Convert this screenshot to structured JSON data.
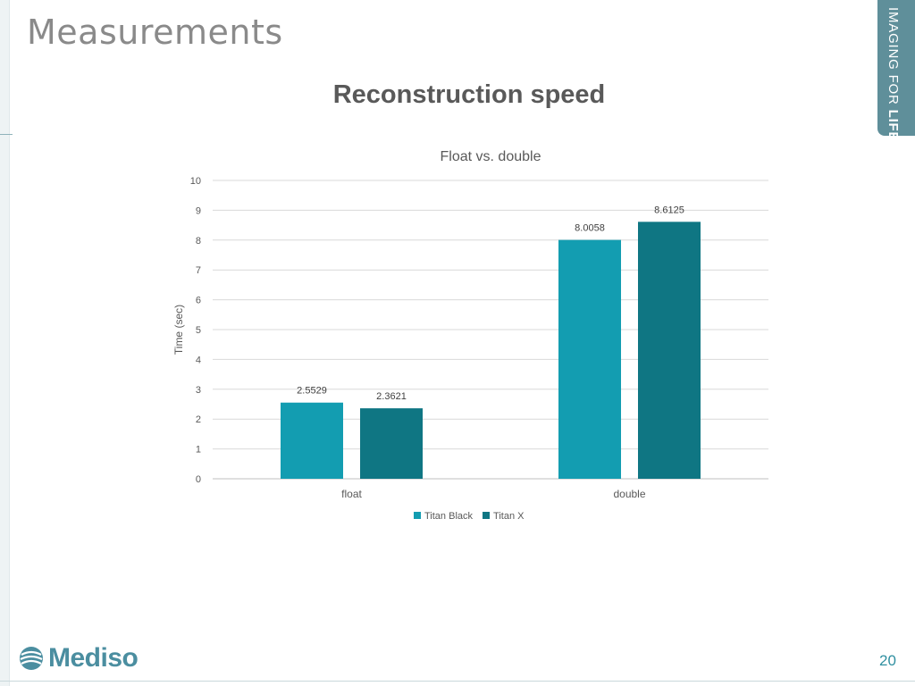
{
  "slide": {
    "title": "Measurements",
    "subtitle": "Reconstruction speed",
    "page_number": "20",
    "brand_tab": {
      "prefix": "IMAGING FOR ",
      "emphasis": "LIFE"
    },
    "logo_text": "Mediso"
  },
  "colors": {
    "titan_black": "#139db1",
    "titan_x": "#0f7683",
    "brand": "#5f8f9a"
  },
  "chart_data": {
    "type": "bar",
    "title": "Float vs. double",
    "xlabel": "",
    "ylabel": "Time (sec)",
    "categories": [
      "float",
      "double"
    ],
    "series": [
      {
        "name": "Titan Black",
        "values": [
          2.5529,
          8.0058
        ],
        "color": "#139db1"
      },
      {
        "name": "Titan X",
        "values": [
          2.3621,
          8.6125
        ],
        "color": "#0f7683"
      }
    ],
    "ylim": [
      0,
      10
    ],
    "yticks": [
      0,
      1,
      2,
      3,
      4,
      5,
      6,
      7,
      8,
      9,
      10
    ],
    "data_labels": [
      [
        "2.5529",
        "8.0058"
      ],
      [
        "2.3621",
        "8.6125"
      ]
    ],
    "grid": true,
    "legend": "bottom"
  }
}
